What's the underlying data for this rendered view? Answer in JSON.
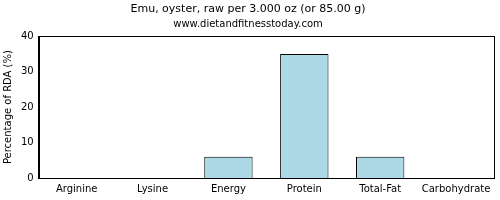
{
  "chart_data": {
    "type": "bar",
    "title": "Emu, oyster, raw per 3.000 oz (or 85.00 g)",
    "subtitle": "www.dietandfitnesstoday.com",
    "y_label": "Percentage of RDA (%)",
    "categories": [
      "Arginine",
      "Lysine",
      "Energy",
      "Protein",
      "Total-Fat",
      "Carbohydrate"
    ],
    "values": [
      0,
      0,
      6,
      35,
      6,
      0
    ],
    "color": "#add8e6",
    "ylim": [
      0,
      40
    ],
    "yticks": [
      0,
      10,
      20,
      30,
      40
    ],
    "grid": false
  }
}
